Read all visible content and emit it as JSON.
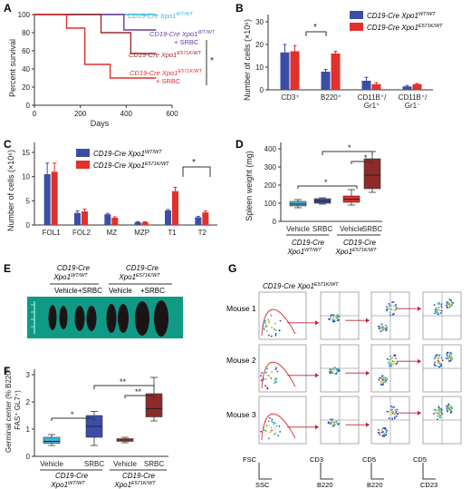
{
  "colors": {
    "wt": "#3a4ea8",
    "mut": "#e0312c",
    "cyan": "#3fb5d6",
    "purple": "#6a3aa0",
    "darkred": "#a32a2a",
    "maroon": "#8e2a2a",
    "green": "#0f9a86"
  },
  "panelA": {
    "letter": "A",
    "ylabel": "Percent survival",
    "xlabel": "Days",
    "yticks": [
      "0",
      "20",
      "40",
      "60",
      "80",
      "100"
    ],
    "xticks": [
      "0",
      "200",
      "400",
      "600"
    ],
    "legend": [
      {
        "label": "CD19-Cre Xpo1",
        "sup": "WT/WT",
        "sub": ""
      },
      {
        "label": "CD19-Cre Xpo1",
        "sup": "WT/WT",
        "sub": "+ SRBC"
      },
      {
        "label": "CD19-Cre Xpo1",
        "sup": "E571K/WT",
        "sub": ""
      },
      {
        "label": "CD19-Cre Xpo1",
        "sup": "E571K/WT",
        "sub": "+ SRBC"
      }
    ],
    "sig": "*",
    "chart_data": {
      "type": "line",
      "xlim": [
        0,
        600
      ],
      "ylim": [
        0,
        100
      ],
      "series": [
        {
          "name": "CD19-Cre Xpo1 WT/WT",
          "x": [
            0,
            530
          ],
          "y": [
            100,
            100
          ]
        },
        {
          "name": "CD19-Cre Xpo1 WT/WT + SRBC",
          "x": [
            0,
            390,
            390,
            530
          ],
          "y": [
            100,
            100,
            83,
            83
          ]
        },
        {
          "name": "CD19-Cre Xpo1 E571K/WT",
          "x": [
            0,
            290,
            290,
            420,
            420,
            530
          ],
          "y": [
            100,
            100,
            80,
            80,
            57,
            57
          ]
        },
        {
          "name": "CD19-Cre Xpo1 E571K/WT + SRBC",
          "x": [
            0,
            140,
            140,
            220,
            220,
            330,
            330,
            530
          ],
          "y": [
            100,
            100,
            85,
            85,
            45,
            45,
            30,
            30
          ]
        }
      ]
    }
  },
  "panelB": {
    "letter": "B",
    "ylabel": "Number of cells (×10⁶)",
    "yticks": [
      "0",
      "10",
      "20",
      "30"
    ],
    "categories": [
      "CD3⁺",
      "B220⁺",
      "CD11B⁺/",
      "CD11B⁺/"
    ],
    "categories2": [
      "",
      "",
      "Gr1⁺",
      "Gr1⁻"
    ],
    "legend": [
      {
        "label": "CD19-Cre Xpo1",
        "sup": "WT/WT"
      },
      {
        "label": "CD19-Cre Xpo1",
        "sup": "E571K/WT"
      }
    ],
    "sig": "*",
    "chart_data": {
      "type": "bar",
      "ylim": [
        0,
        30
      ],
      "categories": [
        "CD3+",
        "B220+",
        "CD11B+/Gr1+",
        "CD11B+/Gr1-"
      ],
      "series": [
        {
          "name": "CD19-Cre Xpo1 WT/WT",
          "values": [
            16.5,
            8,
            4,
            1.5
          ]
        },
        {
          "name": "CD19-Cre Xpo1 E571K/WT",
          "values": [
            17,
            16,
            2.5,
            2.5
          ]
        }
      ],
      "errors": [
        [
          3.5,
          1,
          1.5,
          0.4
        ],
        [
          2.5,
          1,
          0.7,
          0.3
        ]
      ]
    }
  },
  "panelC": {
    "letter": "C",
    "ylabel": "Number of cells (×10⁶)",
    "yticks": [
      "0",
      "5",
      "10",
      "15"
    ],
    "categories": [
      "FOL1",
      "FOL2",
      "MZ",
      "MZP",
      "T1",
      "T2"
    ],
    "legend": [
      {
        "label": "CD19-Cre Xpo1",
        "sup": "WT/WT"
      },
      {
        "label": "CD19-Cre Xpo1",
        "sup": "E571K/WT"
      }
    ],
    "sig": "*",
    "chart_data": {
      "type": "bar",
      "ylim": [
        0,
        15
      ],
      "categories": [
        "FOL1",
        "FOL2",
        "MZ",
        "MZP",
        "T1",
        "T2"
      ],
      "series": [
        {
          "name": "CD19-Cre Xpo1 WT/WT",
          "values": [
            10.5,
            2.5,
            2.2,
            0.6,
            3.0,
            1.6
          ]
        },
        {
          "name": "CD19-Cre Xpo1 E571K/WT",
          "values": [
            11,
            2.8,
            1.5,
            0.6,
            7.0,
            2.6
          ]
        }
      ],
      "errors": [
        [
          2.3,
          0.4,
          0.2,
          0.1,
          0.2,
          0.2
        ],
        [
          1.8,
          0.5,
          0.2,
          0.1,
          0.8,
          0.3
        ]
      ]
    }
  },
  "panelD": {
    "letter": "D",
    "ylabel": "Spleen weight (mg)",
    "yticks": [
      "0",
      "100",
      "200",
      "300",
      "400"
    ],
    "xcats": [
      "Vehicle",
      "SRBC",
      "Vehicle",
      "SRBC"
    ],
    "group1": {
      "l1": "CD19-Cre",
      "l2": "Xpo1",
      "sup": "WT/WT"
    },
    "group2": {
      "l1": "CD19-Cre",
      "l2": "Xpo1",
      "sup": "E571K/WT"
    },
    "sigs": [
      "*",
      "*",
      "*"
    ],
    "chart_data": {
      "type": "box",
      "ylim": [
        0,
        400
      ],
      "categories": [
        "WT Vehicle",
        "WT SRBC",
        "E571K Vehicle",
        "E571K SRBC"
      ],
      "boxes": [
        {
          "min": 75,
          "q1": 85,
          "median": 95,
          "q3": 110,
          "max": 120
        },
        {
          "min": 95,
          "q1": 100,
          "median": 112,
          "q3": 125,
          "max": 130
        },
        {
          "min": 90,
          "q1": 105,
          "median": 122,
          "q3": 140,
          "max": 175
        },
        {
          "min": 160,
          "q1": 180,
          "median": 255,
          "q3": 345,
          "max": 385
        }
      ]
    }
  },
  "panelE": {
    "letter": "E",
    "group1": {
      "l1": "CD19-Cre",
      "l2": "Xpo1",
      "sup": "WT/WT"
    },
    "group2": {
      "l1": "CD19-Cre",
      "l2": "Xpo1",
      "sup": "E571K/WT"
    },
    "cats": [
      "Vehicle",
      "+SRBC",
      "Vehicle",
      "+SRBC"
    ]
  },
  "panelF": {
    "letter": "F",
    "ylabel1": "Germinal center (% B220⁺",
    "ylabel2": "FAS⁺ GL7⁺)",
    "yticks": [
      "0",
      "1",
      "2",
      "3"
    ],
    "xcats": [
      "Vehicle",
      "SRBC",
      "Vehicle",
      "SRBC"
    ],
    "group1": {
      "l1": "CD19-Cre",
      "l2": "Xpo1",
      "sup": "WT/WT"
    },
    "group2": {
      "l1": "CD19-Cre",
      "l2": "Xpo1",
      "sup": "E571K/WT"
    },
    "sigs": [
      "*",
      "**",
      "**"
    ],
    "chart_data": {
      "type": "box",
      "ylim": [
        0,
        3
      ],
      "categories": [
        "WT Vehicle",
        "WT SRBC",
        "E571K Vehicle",
        "E571K SRBC"
      ],
      "boxes": [
        {
          "min": 0.4,
          "q1": 0.48,
          "median": 0.55,
          "q3": 0.7,
          "max": 0.8
        },
        {
          "min": 0.4,
          "q1": 0.7,
          "median": 1.1,
          "q3": 1.5,
          "max": 1.65
        },
        {
          "min": 0.5,
          "q1": 0.55,
          "median": 0.6,
          "q3": 0.65,
          "max": 0.7
        },
        {
          "min": 1.3,
          "q1": 1.45,
          "median": 1.75,
          "q3": 2.3,
          "max": 2.9
        }
      ]
    }
  },
  "panelG": {
    "letter": "G",
    "title": {
      "l1": "CD19-Cre Xpo1",
      "sup": "E571K/WT"
    },
    "mice": [
      "Mouse 1",
      "Mouse 2",
      "Mouse 3"
    ],
    "axes": [
      {
        "x": "SSC",
        "y": "FSC"
      },
      {
        "x": "B220",
        "y": "CD3"
      },
      {
        "x": "B220",
        "y": "CD5"
      },
      {
        "x": "CD23",
        "y": "CD5"
      }
    ]
  }
}
